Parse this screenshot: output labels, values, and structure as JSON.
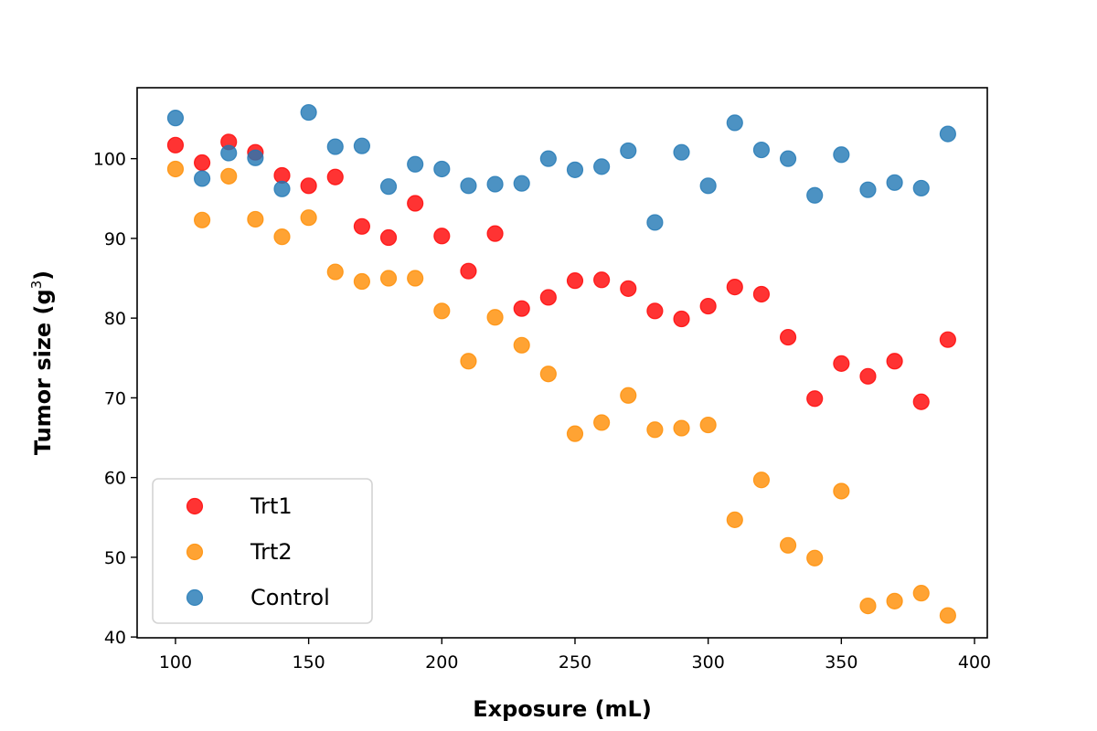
{
  "chart_data": {
    "type": "scatter",
    "title": "",
    "xlabel": "Exposure (mL)",
    "ylabel": "Tumor size (g",
    "ylabel_superscript": "3",
    "ylabel_suffix": ")",
    "xlim": [
      85.6,
      404.8
    ],
    "ylim": [
      39.9,
      108.9
    ],
    "xticks": [
      100,
      150,
      200,
      250,
      300,
      350,
      400
    ],
    "yticks": [
      40,
      50,
      60,
      70,
      80,
      90,
      100
    ],
    "grid": false,
    "legend_position": "lower-left",
    "x": [
      100,
      110,
      120,
      130,
      140,
      150,
      160,
      170,
      180,
      190,
      200,
      210,
      220,
      230,
      240,
      250,
      260,
      270,
      280,
      290,
      300,
      310,
      320,
      330,
      340,
      350,
      360,
      370,
      380,
      390
    ],
    "series": [
      {
        "name": "Trt1",
        "color": "#ff0000",
        "values": [
          101.7,
          99.5,
          102.1,
          100.8,
          97.9,
          96.6,
          97.7,
          91.5,
          90.1,
          94.4,
          90.3,
          85.9,
          90.6,
          81.2,
          82.6,
          84.7,
          84.8,
          83.7,
          80.9,
          79.9,
          81.5,
          83.9,
          83.0,
          77.6,
          69.9,
          74.3,
          72.7,
          74.6,
          69.5,
          77.3
        ]
      },
      {
        "name": "Trt2",
        "color": "#ff8c00",
        "values": [
          98.7,
          92.3,
          97.8,
          92.4,
          90.2,
          92.6,
          85.8,
          84.6,
          85.0,
          85.0,
          80.9,
          74.6,
          80.1,
          76.6,
          73.0,
          65.5,
          66.9,
          70.3,
          66.0,
          66.2,
          66.6,
          54.7,
          59.7,
          51.5,
          49.9,
          58.3,
          43.9,
          44.5,
          45.5,
          42.7
        ]
      },
      {
        "name": "Control",
        "color": "#1f77b4",
        "values": [
          105.1,
          97.5,
          100.7,
          100.1,
          96.2,
          105.8,
          101.5,
          101.6,
          96.5,
          99.3,
          98.7,
          96.6,
          96.8,
          96.9,
          100.0,
          98.6,
          99.0,
          101.0,
          92.0,
          100.8,
          96.6,
          104.5,
          101.1,
          100.0,
          95.4,
          100.5,
          96.1,
          97.0,
          96.3,
          103.1
        ]
      }
    ]
  }
}
